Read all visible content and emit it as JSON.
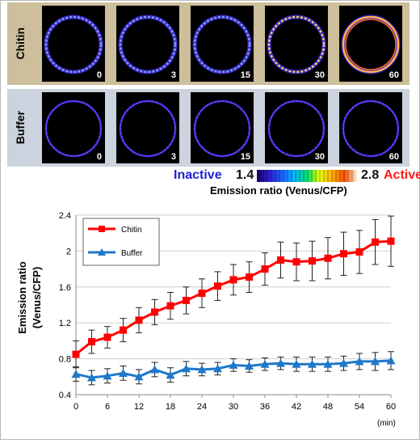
{
  "images": {
    "rows": [
      {
        "label": "Chitin",
        "times": [
          "0",
          "3",
          "15",
          "30",
          "60"
        ],
        "activity": [
          0.35,
          0.3,
          0.45,
          0.6,
          1.0
        ]
      },
      {
        "label": "Buffer",
        "times": [
          "0",
          "3",
          "15",
          "30",
          "60"
        ],
        "activity": [
          0.05,
          0.05,
          0.05,
          0.05,
          0.05
        ]
      }
    ]
  },
  "scale": {
    "inactive": "Inactive",
    "min": "1.4",
    "max": "2.8",
    "active": "Active",
    "caption": "Emission ratio (Venus/CFP)",
    "inactive_color": "#1f1fd6",
    "active_color": "#ff1a1a"
  },
  "chart_data": {
    "type": "line",
    "ylabel_line1": "Emission ratio",
    "ylabel_line2": "(Venus/CFP)",
    "xunit": "(min)",
    "xlim": [
      0,
      60
    ],
    "ylim": [
      0.4,
      2.4
    ],
    "xticks": [
      "0",
      "6",
      "12",
      "18",
      "24",
      "30",
      "36",
      "42",
      "48",
      "54",
      "60"
    ],
    "yticks": [
      "0.4",
      "0.8",
      "1.2",
      "1.6",
      "2",
      "2.4"
    ],
    "grid": true,
    "legend_position": "top-left",
    "x": [
      0,
      3,
      6,
      9,
      12,
      15,
      18,
      21,
      24,
      27,
      30,
      33,
      36,
      39,
      42,
      45,
      48,
      51,
      54,
      57,
      60
    ],
    "series": [
      {
        "name": "Chitin",
        "color": "#ff0000",
        "marker": "square",
        "values": [
          0.85,
          0.99,
          1.04,
          1.12,
          1.23,
          1.32,
          1.39,
          1.45,
          1.53,
          1.61,
          1.68,
          1.71,
          1.8,
          1.9,
          1.88,
          1.89,
          1.92,
          1.97,
          1.99,
          2.1,
          2.11
        ],
        "errors": [
          0.15,
          0.13,
          0.12,
          0.13,
          0.14,
          0.14,
          0.15,
          0.15,
          0.16,
          0.16,
          0.17,
          0.17,
          0.18,
          0.2,
          0.21,
          0.22,
          0.23,
          0.24,
          0.24,
          0.25,
          0.28
        ]
      },
      {
        "name": "Buffer",
        "color": "#1f78c8",
        "marker": "triangle",
        "values": [
          0.63,
          0.59,
          0.61,
          0.64,
          0.6,
          0.68,
          0.62,
          0.69,
          0.68,
          0.69,
          0.73,
          0.72,
          0.74,
          0.75,
          0.74,
          0.74,
          0.74,
          0.75,
          0.77,
          0.77,
          0.78
        ],
        "errors": [
          0.08,
          0.08,
          0.08,
          0.08,
          0.08,
          0.08,
          0.08,
          0.08,
          0.07,
          0.07,
          0.07,
          0.07,
          0.07,
          0.07,
          0.08,
          0.08,
          0.08,
          0.08,
          0.09,
          0.1,
          0.1
        ]
      }
    ]
  }
}
